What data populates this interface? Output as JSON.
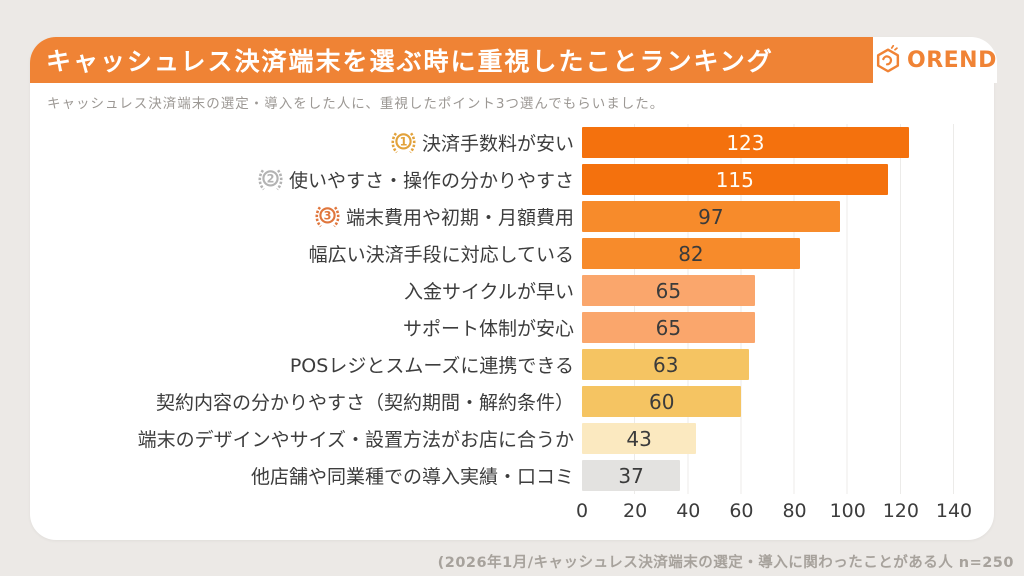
{
  "header": {
    "title": "キャッシュレス決済端末を選ぶ時に重視したことランキング",
    "logo_text": "OREND",
    "accent_color": "#EF8335",
    "logo_color": "#F08335"
  },
  "subtitle": "キャッシュレス決済端末の選定・導入をした人に、重視したポイント3つ選んでもらいました。",
  "chart_data": {
    "type": "bar",
    "orientation": "horizontal",
    "title": "キャッシュレス決済端末を選ぶ時に重視したことランキング",
    "categories": [
      "決済手数料が安い",
      "使いやすさ・操作の分かりやすさ",
      "端末費用や初期・月額費用",
      "幅広い決済手段に対応している",
      "入金サイクルが早い",
      "サポート体制が安心",
      "POSレジとスムーズに連携できる",
      "契約内容の分かりやすさ（契約期間・解約条件）",
      "端末のデザインやサイズ・設置方法がお店に合うか",
      "他店舗や同業種での導入実績・口コミ"
    ],
    "values": [
      123,
      115,
      97,
      82,
      65,
      65,
      63,
      60,
      43,
      37
    ],
    "bar_colors": [
      "#F4710D",
      "#F4710D",
      "#F78B2B",
      "#F78B2B",
      "#FAA66C",
      "#FAA66C",
      "#F5C462",
      "#F5C462",
      "#FBE9C0",
      "#E3E2E0"
    ],
    "value_colors": [
      "#FFFDF7",
      "#FFFDF7",
      "#3B3B3B",
      "#3B3B3B",
      "#3B3B3B",
      "#3B3B3B",
      "#3B3B3B",
      "#3B3B3B",
      "#3B3B3B",
      "#3B3B3B"
    ],
    "medals": [
      {
        "rank": "1",
        "color": "#E2A23B"
      },
      {
        "rank": "2",
        "color": "#B3B3B3"
      },
      {
        "rank": "3",
        "color": "#E0763C"
      }
    ],
    "xlabel": "",
    "ylabel": "",
    "xlim": [
      0,
      140
    ],
    "xticks": [
      "0",
      "20",
      "40",
      "60",
      "80",
      "100",
      "120",
      "140"
    ],
    "grid": true,
    "legend": false
  },
  "footer": {
    "note": "(2026年1月/キャッシュレス決済端末の選定・導入に関わったことがある人  n=250"
  }
}
